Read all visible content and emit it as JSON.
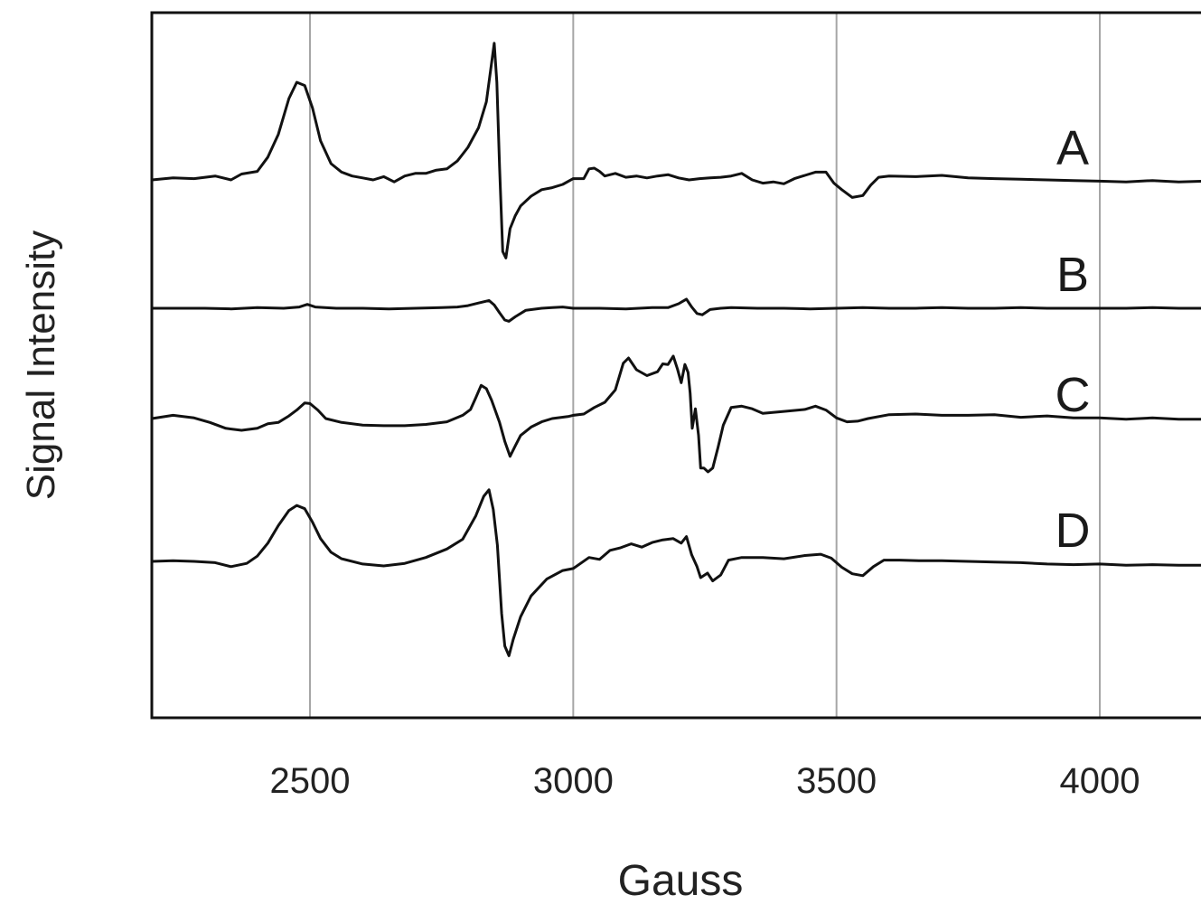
{
  "chart_data": {
    "type": "line",
    "title": "",
    "xlabel": "Gauss",
    "ylabel": "Signal Intensity",
    "xlim": [
      2200,
      4200
    ],
    "x_ticks": [
      2500,
      3000,
      3500,
      4000
    ],
    "x_tick_labels": [
      "2500",
      "3000",
      "3500",
      "4000"
    ],
    "y_ticks": [],
    "grid": "vertical lines at x ticks",
    "legend": "none; series identified by letters A–D placed at right of each trace",
    "series": [
      {
        "name": "A",
        "color": "#111111",
        "points": [
          [
            2200,
            0
          ],
          [
            2240,
            0.3
          ],
          [
            2280,
            0.2
          ],
          [
            2320,
            0.6
          ],
          [
            2350,
            0
          ],
          [
            2370,
            0.9
          ],
          [
            2400,
            1.3
          ],
          [
            2420,
            3.5
          ],
          [
            2440,
            7
          ],
          [
            2460,
            12.5
          ],
          [
            2475,
            15
          ],
          [
            2490,
            14.5
          ],
          [
            2505,
            11
          ],
          [
            2520,
            6
          ],
          [
            2540,
            2.5
          ],
          [
            2560,
            1.2
          ],
          [
            2580,
            0.6
          ],
          [
            2600,
            0.3
          ],
          [
            2620,
            0
          ],
          [
            2640,
            0.5
          ],
          [
            2660,
            -0.3
          ],
          [
            2680,
            0.6
          ],
          [
            2700,
            1
          ],
          [
            2720,
            1
          ],
          [
            2740,
            1.5
          ],
          [
            2760,
            1.7
          ],
          [
            2780,
            2.9
          ],
          [
            2800,
            5
          ],
          [
            2820,
            8
          ],
          [
            2835,
            12
          ],
          [
            2845,
            18
          ],
          [
            2850,
            21
          ],
          [
            2855,
            15
          ],
          [
            2860,
            2
          ],
          [
            2866,
            -11
          ],
          [
            2872,
            -12
          ],
          [
            2880,
            -7.5
          ],
          [
            2890,
            -5.5
          ],
          [
            2900,
            -4
          ],
          [
            2920,
            -2.5
          ],
          [
            2940,
            -1.5
          ],
          [
            2960,
            -1.2
          ],
          [
            2980,
            -0.7
          ],
          [
            3000,
            0.2
          ],
          [
            3020,
            0.2
          ],
          [
            3030,
            1.7
          ],
          [
            3040,
            1.8
          ],
          [
            3050,
            1.3
          ],
          [
            3060,
            0.6
          ],
          [
            3080,
            1
          ],
          [
            3100,
            0.4
          ],
          [
            3120,
            0.6
          ],
          [
            3140,
            0.3
          ],
          [
            3160,
            0.6
          ],
          [
            3180,
            0.8
          ],
          [
            3200,
            0.3
          ],
          [
            3220,
            0
          ],
          [
            3240,
            0.2
          ],
          [
            3260,
            0.3
          ],
          [
            3280,
            0.4
          ],
          [
            3300,
            0.6
          ],
          [
            3320,
            1
          ],
          [
            3340,
            0
          ],
          [
            3360,
            -0.5
          ],
          [
            3380,
            -0.3
          ],
          [
            3400,
            -0.6
          ],
          [
            3420,
            0.2
          ],
          [
            3440,
            0.7
          ],
          [
            3460,
            1.2
          ],
          [
            3480,
            1.2
          ],
          [
            3495,
            -0.5
          ],
          [
            3510,
            -1.5
          ],
          [
            3530,
            -2.7
          ],
          [
            3550,
            -2.4
          ],
          [
            3565,
            -0.8
          ],
          [
            3580,
            0.4
          ],
          [
            3600,
            0.6
          ],
          [
            3650,
            0.5
          ],
          [
            3700,
            0.7
          ],
          [
            3750,
            0.3
          ],
          [
            3800,
            0.2
          ],
          [
            3850,
            0.1
          ],
          [
            3900,
            0
          ],
          [
            3950,
            -0.1
          ],
          [
            4000,
            -0.2
          ],
          [
            4050,
            -0.3
          ],
          [
            4100,
            -0.1
          ],
          [
            4150,
            -0.3
          ],
          [
            4200,
            -0.2
          ]
        ]
      },
      {
        "name": "B",
        "color": "#111111",
        "points": [
          [
            2200,
            0
          ],
          [
            2250,
            0
          ],
          [
            2300,
            0
          ],
          [
            2350,
            -0.1
          ],
          [
            2400,
            0.1
          ],
          [
            2450,
            0
          ],
          [
            2480,
            0.2
          ],
          [
            2495,
            0.6
          ],
          [
            2510,
            0.2
          ],
          [
            2550,
            0
          ],
          [
            2600,
            0
          ],
          [
            2650,
            -0.1
          ],
          [
            2700,
            0
          ],
          [
            2750,
            0.1
          ],
          [
            2780,
            0.2
          ],
          [
            2800,
            0.4
          ],
          [
            2820,
            0.8
          ],
          [
            2840,
            1.2
          ],
          [
            2850,
            0.5
          ],
          [
            2860,
            -0.7
          ],
          [
            2870,
            -1.8
          ],
          [
            2878,
            -2
          ],
          [
            2890,
            -1.3
          ],
          [
            2910,
            -0.3
          ],
          [
            2940,
            0
          ],
          [
            2960,
            0.1
          ],
          [
            2980,
            0.2
          ],
          [
            3000,
            0
          ],
          [
            3050,
            0
          ],
          [
            3100,
            -0.1
          ],
          [
            3150,
            0.1
          ],
          [
            3180,
            0.1
          ],
          [
            3200,
            0.7
          ],
          [
            3215,
            1.4
          ],
          [
            3225,
            0.2
          ],
          [
            3235,
            -0.8
          ],
          [
            3245,
            -1
          ],
          [
            3260,
            -0.2
          ],
          [
            3280,
            0
          ],
          [
            3300,
            0.1
          ],
          [
            3350,
            0
          ],
          [
            3400,
            0
          ],
          [
            3450,
            -0.1
          ],
          [
            3500,
            0
          ],
          [
            3550,
            0.1
          ],
          [
            3600,
            0
          ],
          [
            3650,
            0
          ],
          [
            3700,
            0.1
          ],
          [
            3750,
            0
          ],
          [
            3800,
            0
          ],
          [
            3850,
            0.1
          ],
          [
            3900,
            0
          ],
          [
            3950,
            0
          ],
          [
            4000,
            0
          ],
          [
            4050,
            0
          ],
          [
            4100,
            0.1
          ],
          [
            4150,
            0
          ],
          [
            4200,
            0
          ]
        ]
      },
      {
        "name": "C",
        "color": "#111111",
        "points": [
          [
            2200,
            0
          ],
          [
            2240,
            0.5
          ],
          [
            2280,
            0.1
          ],
          [
            2310,
            -0.6
          ],
          [
            2340,
            -1.5
          ],
          [
            2370,
            -1.8
          ],
          [
            2400,
            -1.5
          ],
          [
            2420,
            -0.8
          ],
          [
            2440,
            -0.6
          ],
          [
            2460,
            0.4
          ],
          [
            2475,
            1.3
          ],
          [
            2490,
            2.4
          ],
          [
            2500,
            2.3
          ],
          [
            2515,
            1.3
          ],
          [
            2530,
            0
          ],
          [
            2560,
            -0.6
          ],
          [
            2600,
            -1
          ],
          [
            2640,
            -1.1
          ],
          [
            2680,
            -1.1
          ],
          [
            2720,
            -0.9
          ],
          [
            2760,
            -0.5
          ],
          [
            2790,
            0.5
          ],
          [
            2805,
            1.4
          ],
          [
            2815,
            3.2
          ],
          [
            2825,
            5.1
          ],
          [
            2835,
            4.6
          ],
          [
            2845,
            2.8
          ],
          [
            2860,
            -0.6
          ],
          [
            2870,
            -3.5
          ],
          [
            2880,
            -5.8
          ],
          [
            2890,
            -4.2
          ],
          [
            2900,
            -2.6
          ],
          [
            2920,
            -1.3
          ],
          [
            2940,
            -0.5
          ],
          [
            2960,
            0
          ],
          [
            2990,
            0.3
          ],
          [
            3000,
            0.5
          ],
          [
            3020,
            0.7
          ],
          [
            3040,
            1.7
          ],
          [
            3060,
            2.5
          ],
          [
            3080,
            4.4
          ],
          [
            3095,
            8.5
          ],
          [
            3105,
            9.3
          ],
          [
            3120,
            7.5
          ],
          [
            3140,
            6.6
          ],
          [
            3160,
            7.2
          ],
          [
            3170,
            8.4
          ],
          [
            3180,
            8.3
          ],
          [
            3190,
            9.6
          ],
          [
            3198,
            7.6
          ],
          [
            3205,
            5.5
          ],
          [
            3212,
            8.3
          ],
          [
            3218,
            7.1
          ],
          [
            3222,
            3.9
          ],
          [
            3226,
            -1.5
          ],
          [
            3232,
            1.5
          ],
          [
            3238,
            -2.6
          ],
          [
            3242,
            -7.6
          ],
          [
            3248,
            -7.6
          ],
          [
            3256,
            -8.2
          ],
          [
            3265,
            -7.6
          ],
          [
            3275,
            -4.4
          ],
          [
            3285,
            -1
          ],
          [
            3300,
            1.7
          ],
          [
            3320,
            1.9
          ],
          [
            3340,
            1.5
          ],
          [
            3360,
            0.8
          ],
          [
            3400,
            1.1
          ],
          [
            3440,
            1.4
          ],
          [
            3460,
            1.9
          ],
          [
            3480,
            1.3
          ],
          [
            3500,
            0.1
          ],
          [
            3520,
            -0.5
          ],
          [
            3540,
            -0.4
          ],
          [
            3560,
            0
          ],
          [
            3600,
            0.6
          ],
          [
            3650,
            0.7
          ],
          [
            3700,
            0.5
          ],
          [
            3750,
            0.5
          ],
          [
            3800,
            0.6
          ],
          [
            3850,
            0.2
          ],
          [
            3900,
            0.4
          ],
          [
            3950,
            0.1
          ],
          [
            4000,
            0.1
          ],
          [
            4050,
            -0.1
          ],
          [
            4100,
            0.1
          ],
          [
            4150,
            -0.1
          ],
          [
            4200,
            -0.1
          ]
        ]
      },
      {
        "name": "D",
        "color": "#111111",
        "points": [
          [
            2200,
            0
          ],
          [
            2240,
            0.1
          ],
          [
            2280,
            0
          ],
          [
            2320,
            -0.2
          ],
          [
            2350,
            -0.8
          ],
          [
            2380,
            -0.3
          ],
          [
            2400,
            0.8
          ],
          [
            2420,
            2.8
          ],
          [
            2440,
            5.5
          ],
          [
            2460,
            7.8
          ],
          [
            2475,
            8.6
          ],
          [
            2490,
            8.1
          ],
          [
            2505,
            6
          ],
          [
            2520,
            3.5
          ],
          [
            2540,
            1.4
          ],
          [
            2560,
            0.4
          ],
          [
            2600,
            -0.4
          ],
          [
            2640,
            -0.7
          ],
          [
            2680,
            -0.3
          ],
          [
            2720,
            0.6
          ],
          [
            2760,
            1.9
          ],
          [
            2790,
            3.4
          ],
          [
            2815,
            7
          ],
          [
            2830,
            10
          ],
          [
            2840,
            11
          ],
          [
            2848,
            8
          ],
          [
            2856,
            2.5
          ],
          [
            2864,
            -8
          ],
          [
            2870,
            -13
          ],
          [
            2878,
            -14.5
          ],
          [
            2886,
            -12
          ],
          [
            2900,
            -8.5
          ],
          [
            2920,
            -5.3
          ],
          [
            2950,
            -2.7
          ],
          [
            2980,
            -1.4
          ],
          [
            3000,
            -1.1
          ],
          [
            3030,
            0.6
          ],
          [
            3050,
            0.3
          ],
          [
            3070,
            1.7
          ],
          [
            3090,
            2.1
          ],
          [
            3110,
            2.7
          ],
          [
            3130,
            2.2
          ],
          [
            3150,
            2.9
          ],
          [
            3170,
            3.3
          ],
          [
            3190,
            3.5
          ],
          [
            3205,
            2.8
          ],
          [
            3215,
            3.8
          ],
          [
            3225,
            1
          ],
          [
            3235,
            -0.8
          ],
          [
            3242,
            -2.5
          ],
          [
            3255,
            -1.8
          ],
          [
            3265,
            -3
          ],
          [
            3280,
            -2.1
          ],
          [
            3295,
            0.2
          ],
          [
            3320,
            0.6
          ],
          [
            3360,
            0.6
          ],
          [
            3400,
            0.4
          ],
          [
            3440,
            0.9
          ],
          [
            3470,
            1.1
          ],
          [
            3490,
            0.5
          ],
          [
            3510,
            -0.9
          ],
          [
            3530,
            -1.9
          ],
          [
            3550,
            -2.2
          ],
          [
            3570,
            -0.8
          ],
          [
            3590,
            0.2
          ],
          [
            3620,
            0.2
          ],
          [
            3660,
            0.1
          ],
          [
            3700,
            0.1
          ],
          [
            3750,
            0
          ],
          [
            3800,
            -0.1
          ],
          [
            3850,
            -0.2
          ],
          [
            3900,
            -0.4
          ],
          [
            3950,
            -0.5
          ],
          [
            4000,
            -0.4
          ],
          [
            4050,
            -0.6
          ],
          [
            4100,
            -0.5
          ],
          [
            4150,
            -0.6
          ],
          [
            4200,
            -0.6
          ]
        ]
      }
    ]
  }
}
